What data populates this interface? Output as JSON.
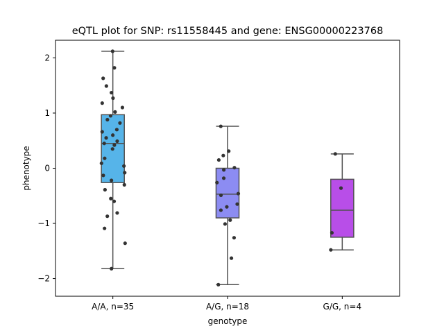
{
  "chart_data": {
    "type": "box",
    "title": "eQTL plot for SNP: rs11558445 and gene: ENSG00000223768",
    "xlabel": "genotype",
    "ylabel": "phenotype",
    "ylim": [
      -2.32,
      2.32
    ],
    "yticks": [
      -2,
      -1,
      0,
      1,
      2
    ],
    "ytick_labels": [
      "−2",
      "−1",
      "0",
      "1",
      "2"
    ],
    "grid": false,
    "categories": [
      "A/A, n=35",
      "A/G, n=18",
      "G/G, n=4"
    ],
    "colors": [
      "#56b4e9",
      "#8c8cf2",
      "#b84ee8"
    ],
    "box_edge_color": "#505050",
    "point_color": "#333333",
    "boxes": [
      {
        "category": "A/A, n=35",
        "q1": -0.26,
        "median": 0.45,
        "q3": 0.97,
        "whisker_low": -1.82,
        "whisker_high": 2.12
      },
      {
        "category": "A/G, n=18",
        "q1": -0.9,
        "median": -0.47,
        "q3": 0.0,
        "whisker_low": -2.11,
        "whisker_high": 0.76
      },
      {
        "category": "G/G, n=4",
        "q1": -1.25,
        "median": -0.76,
        "q3": -0.2,
        "whisker_low": -1.48,
        "whisker_high": 0.26
      }
    ],
    "points": [
      {
        "category": "A/A, n=35",
        "values": [
          2.12,
          1.82,
          1.63,
          1.49,
          1.37,
          1.27,
          1.18,
          1.1,
          1.02,
          0.95,
          0.88,
          0.82,
          0.7,
          0.66,
          0.6,
          0.55,
          0.49,
          0.45,
          0.42,
          0.35,
          0.18,
          0.09,
          0.04,
          -0.08,
          -0.13,
          -0.22,
          -0.3,
          -0.39,
          -0.55,
          -0.6,
          -0.81,
          -0.87,
          -1.09,
          -1.36,
          -1.82
        ]
      },
      {
        "category": "A/G, n=18",
        "values": [
          0.76,
          0.31,
          0.23,
          0.15,
          0.01,
          -0.03,
          -0.18,
          -0.26,
          -0.46,
          -0.49,
          -0.65,
          -0.7,
          -0.76,
          -0.94,
          -1.01,
          -1.26,
          -1.63,
          -2.11
        ]
      },
      {
        "category": "G/G, n=4",
        "values": [
          0.26,
          -0.36,
          -1.17,
          -1.48
        ]
      }
    ]
  }
}
